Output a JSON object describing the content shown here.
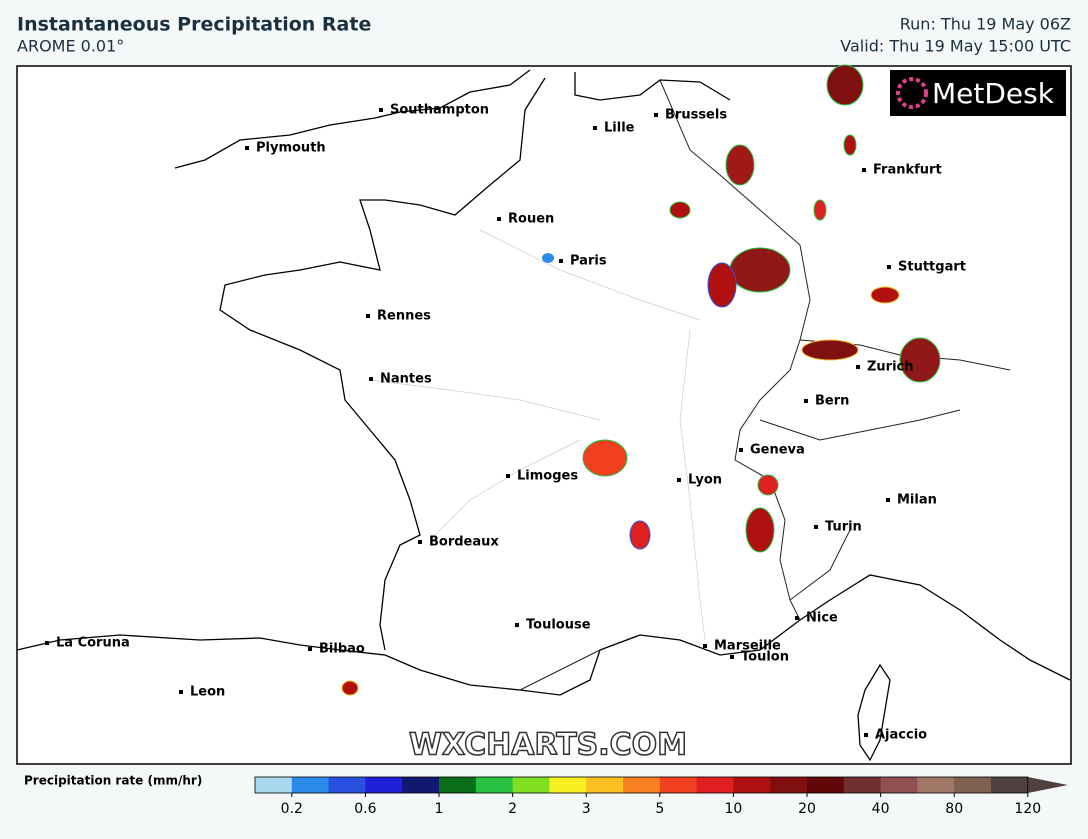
{
  "header": {
    "title": "Instantaneous Precipitation Rate",
    "subtitle": "AROME 0.01°",
    "run": "Run: Thu 19 May 06Z",
    "valid": "Valid: Thu 19 May 15:00 UTC"
  },
  "logo": "MetDesk",
  "watermark": "WXCHARTS.COM",
  "cities": [
    "Southampton",
    "Plymouth",
    "Lille",
    "Brussels",
    "Frankfurt",
    "Rouen",
    "Paris",
    "Stuttgart",
    "Rennes",
    "Nantes",
    "Zurich",
    "Bern",
    "Geneva",
    "Limoges",
    "Lyon",
    "Milan",
    "Turin",
    "Bordeaux",
    "Toulouse",
    "Nice",
    "Marseille",
    "Toulon",
    "La Coruna",
    "Bilbao",
    "Leon",
    "Ajaccio"
  ],
  "legend": {
    "title": "Precipitation rate (mm/hr)",
    "colors": [
      "#a8d8ec",
      "#2a8ce8",
      "#2a50e0",
      "#2020d8",
      "#101870",
      "#0a6e1a",
      "#28c040",
      "#80e020",
      "#f8f020",
      "#f8c020",
      "#f88020",
      "#f04020",
      "#e02020",
      "#b01010",
      "#801010",
      "#600808",
      "#703030",
      "#905050",
      "#a07868",
      "#806050",
      "#504040"
    ],
    "ticks": [
      0.2,
      0.6,
      1,
      2,
      3,
      5,
      10,
      20,
      40,
      80,
      120
    ]
  }
}
